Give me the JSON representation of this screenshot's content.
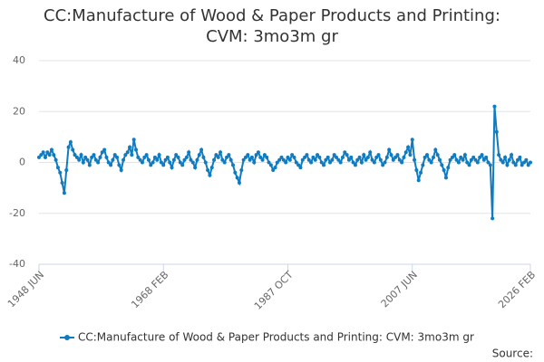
{
  "chart_data": {
    "type": "line",
    "title": "CC:Manufacture of Wood & Paper Products and Printing: CVM: 3mo3m gr",
    "source": "Source:",
    "categories": [
      "1948 JUN",
      null,
      null,
      null,
      null,
      null,
      null,
      null,
      null,
      null,
      null,
      null,
      null,
      null,
      null,
      null,
      null,
      null,
      null,
      null,
      null,
      null,
      null,
      null,
      null,
      null,
      null,
      null,
      null,
      null,
      null,
      null,
      null,
      null,
      null,
      null,
      null,
      null,
      null,
      null,
      null,
      null,
      null,
      null,
      null,
      null,
      null,
      null,
      null,
      null,
      null,
      null,
      null,
      null,
      null,
      null,
      null,
      null,
      null,
      "1968 FEB",
      null,
      null,
      null,
      null,
      null,
      null,
      null,
      null,
      null,
      null,
      null,
      null,
      null,
      null,
      null,
      null,
      null,
      null,
      null,
      null,
      null,
      null,
      null,
      null,
      null,
      null,
      null,
      null,
      null,
      null,
      null,
      null,
      null,
      null,
      null,
      null,
      null,
      null,
      null,
      null,
      null,
      null,
      null,
      null,
      null,
      null,
      null,
      null,
      null,
      null,
      null,
      null,
      null,
      null,
      null,
      null,
      null,
      null,
      "1987 OCT",
      null,
      null,
      null,
      null,
      null,
      null,
      null,
      null,
      null,
      null,
      null,
      null,
      null,
      null,
      null,
      null,
      null,
      null,
      null,
      null,
      null,
      null,
      null,
      null,
      null,
      null,
      null,
      null,
      null,
      null,
      null,
      null,
      null,
      null,
      null,
      null,
      null,
      null,
      null,
      null,
      null,
      null,
      null,
      null,
      null,
      null,
      null,
      null,
      null,
      null,
      null,
      null,
      null,
      null,
      null,
      null,
      null,
      null,
      "2007 JUN",
      null,
      null,
      null,
      null,
      null,
      null,
      null,
      null,
      null,
      null,
      null,
      null,
      null,
      null,
      null,
      null,
      null,
      null,
      null,
      null,
      null,
      null,
      null,
      null,
      null,
      null,
      null,
      null,
      null,
      null,
      null,
      null,
      null,
      null,
      null,
      null,
      null,
      null,
      null,
      null,
      null,
      null,
      null,
      null,
      null,
      null,
      null,
      null,
      null,
      null,
      null,
      null,
      null,
      null,
      null,
      "2026 FEB"
    ],
    "series": [
      {
        "name": "CC:Manufacture of Wood & Paper Products and Printing: CVM: 3mo3m gr",
        "color": "#0f7bc0",
        "values": [
          2,
          3,
          4,
          2,
          4,
          3,
          5,
          3,
          1,
          -2,
          -4,
          -8,
          -12,
          -3,
          6,
          8,
          5,
          3,
          2,
          1,
          3,
          0,
          2,
          1,
          -1,
          2,
          3,
          1,
          0,
          2,
          4,
          5,
          2,
          0,
          -1,
          1,
          3,
          2,
          -1,
          -3,
          1,
          3,
          4,
          6,
          3,
          9,
          5,
          2,
          1,
          0,
          2,
          3,
          1,
          -1,
          0,
          2,
          1,
          3,
          0,
          -1,
          1,
          2,
          0,
          -2,
          1,
          3,
          2,
          0,
          -1,
          1,
          2,
          4,
          1,
          0,
          -2,
          1,
          3,
          5,
          2,
          0,
          -3,
          -5,
          -2,
          1,
          3,
          2,
          4,
          1,
          0,
          2,
          3,
          1,
          -1,
          -4,
          -6,
          -8,
          -3,
          1,
          2,
          3,
          1,
          2,
          0,
          3,
          4,
          2,
          1,
          3,
          2,
          0,
          -1,
          -3,
          -2,
          0,
          1,
          2,
          1,
          0,
          2,
          1,
          3,
          2,
          0,
          -1,
          -2,
          1,
          2,
          3,
          1,
          0,
          2,
          1,
          3,
          2,
          0,
          -1,
          1,
          2,
          0,
          1,
          3,
          2,
          1,
          0,
          2,
          4,
          3,
          1,
          2,
          0,
          -1,
          1,
          2,
          0,
          3,
          1,
          2,
          4,
          1,
          0,
          2,
          3,
          1,
          -1,
          0,
          2,
          5,
          3,
          1,
          2,
          3,
          1,
          0,
          2,
          4,
          6,
          3,
          9,
          1,
          -3,
          -7,
          -4,
          -1,
          2,
          3,
          1,
          0,
          2,
          5,
          3,
          1,
          -1,
          -3,
          -6,
          -2,
          1,
          2,
          3,
          1,
          0,
          2,
          1,
          3,
          0,
          -1,
          1,
          2,
          1,
          0,
          2,
          3,
          1,
          2,
          0,
          -1,
          -22,
          22,
          12,
          3,
          1,
          0,
          2,
          -1,
          1,
          3,
          0,
          -1,
          1,
          2,
          -1,
          0,
          1,
          -1,
          0
        ]
      }
    ],
    "ylim": [
      -40,
      40
    ],
    "yticks": [
      -40,
      -20,
      0,
      20,
      40
    ],
    "grid": true
  }
}
